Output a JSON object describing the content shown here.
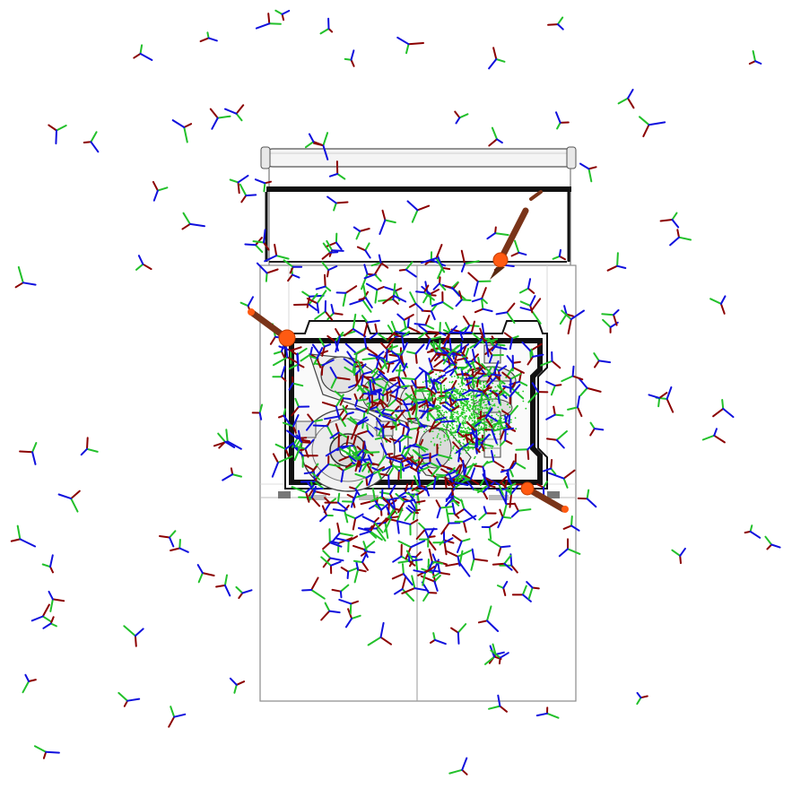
{
  "scene": {
    "background_color": "#ffffff",
    "frame_axes": {
      "count": 520,
      "colors": {
        "x_axis": "#8b0000",
        "y_axis": "#22c02a",
        "z_axis": "#1010dd"
      }
    },
    "force_arrows": {
      "count": 4,
      "shaft_color": "#7a3419",
      "tip_color": "#ff5a12"
    },
    "point_cloud": {
      "color": "#22cc22"
    },
    "colors": {
      "frame_line": "#222222",
      "panel_line": "#9a9a9a",
      "part_fill": "#f2f2f2",
      "part_shade": "#c9c9c9",
      "part_dark": "#555555"
    },
    "icons": {
      "axis_triad": "frame-axis-triad-icon",
      "force_arrow": "force-arrow-icon"
    }
  }
}
